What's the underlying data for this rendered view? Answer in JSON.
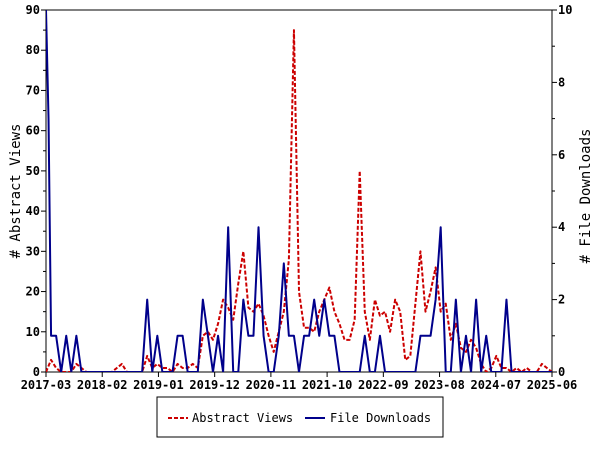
{
  "chart_data": {
    "type": "line",
    "title": "",
    "xlabel": "",
    "ylabel_left": "# Abstract Views",
    "ylabel_right": "# File Downloads",
    "x_tick_labels": [
      "2017-03",
      "2018-02",
      "2019-01",
      "2019-12",
      "2020-11",
      "2021-10",
      "2022-09",
      "2023-08",
      "2024-07",
      "2025-06"
    ],
    "x_range": [
      0,
      100
    ],
    "y_left_range": [
      0,
      90
    ],
    "y_left_ticks": [
      0,
      10,
      20,
      30,
      40,
      50,
      60,
      70,
      80,
      90
    ],
    "y_right_range": [
      0,
      10
    ],
    "y_right_ticks": [
      0,
      2,
      4,
      6,
      8,
      10
    ],
    "grid": false,
    "legend_position": "bottom-center",
    "series": [
      {
        "name": "Abstract Views",
        "axis": "left",
        "color": "#cc0000",
        "dash": true,
        "points": [
          [
            0,
            0
          ],
          [
            1,
            3
          ],
          [
            2,
            1
          ],
          [
            3,
            0
          ],
          [
            4,
            0
          ],
          [
            5,
            0
          ],
          [
            6,
            2
          ],
          [
            7,
            1
          ],
          [
            8,
            0
          ],
          [
            9,
            0
          ],
          [
            10,
            0
          ],
          [
            11,
            0
          ],
          [
            12,
            0
          ],
          [
            13,
            0
          ],
          [
            14,
            1
          ],
          [
            15,
            2
          ],
          [
            16,
            0
          ],
          [
            17,
            0
          ],
          [
            18,
            0
          ],
          [
            19,
            0
          ],
          [
            20,
            4
          ],
          [
            21,
            1
          ],
          [
            22,
            2
          ],
          [
            23,
            1
          ],
          [
            24,
            1
          ],
          [
            25,
            0
          ],
          [
            26,
            2
          ],
          [
            27,
            1
          ],
          [
            28,
            1
          ],
          [
            29,
            2
          ],
          [
            30,
            1
          ],
          [
            31,
            9
          ],
          [
            32,
            10
          ],
          [
            33,
            8
          ],
          [
            34,
            12
          ],
          [
            35,
            18
          ],
          [
            36,
            16
          ],
          [
            37,
            13
          ],
          [
            38,
            22
          ],
          [
            39,
            30
          ],
          [
            40,
            16
          ],
          [
            41,
            15
          ],
          [
            42,
            17
          ],
          [
            43,
            14
          ],
          [
            44,
            9
          ],
          [
            45,
            5
          ],
          [
            46,
            10
          ],
          [
            47,
            15
          ],
          [
            48,
            28
          ],
          [
            49,
            85
          ],
          [
            50,
            20
          ],
          [
            51,
            11
          ],
          [
            52,
            11
          ],
          [
            53,
            10
          ],
          [
            54,
            15
          ],
          [
            55,
            18
          ],
          [
            56,
            21
          ],
          [
            57,
            15
          ],
          [
            58,
            12
          ],
          [
            59,
            8
          ],
          [
            60,
            8
          ],
          [
            61,
            13
          ],
          [
            62,
            50
          ],
          [
            63,
            15
          ],
          [
            64,
            8
          ],
          [
            65,
            18
          ],
          [
            66,
            14
          ],
          [
            67,
            15
          ],
          [
            68,
            10
          ],
          [
            69,
            18
          ],
          [
            70,
            15
          ],
          [
            71,
            3
          ],
          [
            72,
            4
          ],
          [
            73,
            17
          ],
          [
            74,
            30
          ],
          [
            75,
            15
          ],
          [
            76,
            20
          ],
          [
            77,
            26
          ],
          [
            78,
            15
          ],
          [
            79,
            17
          ],
          [
            80,
            8
          ],
          [
            81,
            12
          ],
          [
            82,
            6
          ],
          [
            83,
            5
          ],
          [
            84,
            8
          ],
          [
            85,
            6
          ],
          [
            86,
            2
          ],
          [
            87,
            0
          ],
          [
            88,
            1
          ],
          [
            89,
            4
          ],
          [
            90,
            1
          ],
          [
            91,
            1
          ],
          [
            92,
            0
          ],
          [
            93,
            1
          ],
          [
            94,
            0
          ],
          [
            95,
            1
          ],
          [
            96,
            0
          ],
          [
            97,
            0
          ],
          [
            98,
            2
          ],
          [
            99,
            1
          ],
          [
            100,
            0
          ]
        ]
      },
      {
        "name": "File Downloads",
        "axis": "right",
        "color": "#00008b",
        "dash": false,
        "points": [
          [
            0,
            10
          ],
          [
            0.5,
            7
          ],
          [
            1,
            1
          ],
          [
            2,
            1
          ],
          [
            3,
            0
          ],
          [
            4,
            1
          ],
          [
            5,
            0
          ],
          [
            6,
            1
          ],
          [
            7,
            0
          ],
          [
            8,
            0
          ],
          [
            9,
            0
          ],
          [
            10,
            0
          ],
          [
            11,
            0
          ],
          [
            12,
            0
          ],
          [
            13,
            0
          ],
          [
            14,
            0
          ],
          [
            15,
            0
          ],
          [
            16,
            0
          ],
          [
            17,
            0
          ],
          [
            18,
            0
          ],
          [
            19,
            0
          ],
          [
            20,
            2
          ],
          [
            21,
            0
          ],
          [
            22,
            1
          ],
          [
            23,
            0
          ],
          [
            24,
            0
          ],
          [
            25,
            0
          ],
          [
            26,
            1
          ],
          [
            27,
            1
          ],
          [
            28,
            0
          ],
          [
            29,
            0
          ],
          [
            30,
            0
          ],
          [
            31,
            2
          ],
          [
            32,
            1
          ],
          [
            33,
            0
          ],
          [
            34,
            1
          ],
          [
            35,
            0
          ],
          [
            36,
            4
          ],
          [
            37,
            0
          ],
          [
            38,
            0
          ],
          [
            39,
            2
          ],
          [
            40,
            1
          ],
          [
            41,
            1
          ],
          [
            42,
            4
          ],
          [
            43,
            1
          ],
          [
            44,
            0
          ],
          [
            45,
            0
          ],
          [
            46,
            1
          ],
          [
            47,
            3
          ],
          [
            48,
            1
          ],
          [
            49,
            1
          ],
          [
            50,
            0
          ],
          [
            51,
            1
          ],
          [
            52,
            1
          ],
          [
            53,
            2
          ],
          [
            54,
            1
          ],
          [
            55,
            2
          ],
          [
            56,
            1
          ],
          [
            57,
            1
          ],
          [
            58,
            0
          ],
          [
            59,
            0
          ],
          [
            60,
            0
          ],
          [
            61,
            0
          ],
          [
            62,
            0
          ],
          [
            63,
            1
          ],
          [
            64,
            0
          ],
          [
            65,
            0
          ],
          [
            66,
            1
          ],
          [
            67,
            0
          ],
          [
            68,
            0
          ],
          [
            69,
            0
          ],
          [
            70,
            0
          ],
          [
            71,
            0
          ],
          [
            72,
            0
          ],
          [
            73,
            0
          ],
          [
            74,
            1
          ],
          [
            75,
            1
          ],
          [
            76,
            1
          ],
          [
            77,
            2
          ],
          [
            78,
            4
          ],
          [
            79,
            0
          ],
          [
            80,
            0
          ],
          [
            81,
            2
          ],
          [
            82,
            0
          ],
          [
            83,
            1
          ],
          [
            84,
            0
          ],
          [
            85,
            2
          ],
          [
            86,
            0
          ],
          [
            87,
            1
          ],
          [
            88,
            0
          ],
          [
            89,
            0
          ],
          [
            90,
            0
          ],
          [
            91,
            2
          ],
          [
            92,
            0
          ],
          [
            93,
            0
          ],
          [
            94,
            0
          ],
          [
            95,
            0
          ],
          [
            96,
            0
          ],
          [
            97,
            0
          ],
          [
            98,
            0
          ],
          [
            99,
            0
          ],
          [
            100,
            0
          ]
        ]
      }
    ]
  }
}
